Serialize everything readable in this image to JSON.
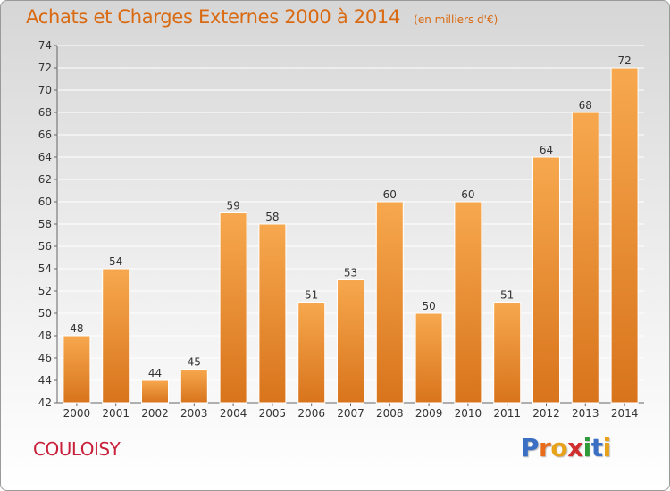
{
  "header": {
    "title": "Achats et Charges Externes 2000 à 2014",
    "subtitle": "(en milliers d'€)"
  },
  "footer": {
    "commune": "COULOISY",
    "logo": [
      "P",
      "r",
      "o",
      "x",
      "i",
      "t",
      "i"
    ]
  },
  "colors": {
    "title": "#d96a12",
    "commune": "#c8203a",
    "bar_light": "#f7a84e",
    "bar_dark": "#d8741c",
    "logo": [
      "#3b6fc4",
      "#e86c1a",
      "#e8a21a",
      "#d12f2f",
      "#2f9a3a",
      "#3b6fc4",
      "#e8a21a"
    ]
  },
  "chart_data": {
    "type": "bar",
    "title": "Achats et Charges Externes 2000 à 2014",
    "subtitle": "(en milliers d'€)",
    "xlabel": "",
    "ylabel": "",
    "categories": [
      "2000",
      "2001",
      "2002",
      "2003",
      "2004",
      "2005",
      "2006",
      "2007",
      "2008",
      "2009",
      "2010",
      "2011",
      "2012",
      "2013",
      "2014"
    ],
    "values": [
      48,
      54,
      44,
      45,
      59,
      58,
      51,
      53,
      60,
      50,
      60,
      51,
      64,
      68,
      72
    ],
    "ylim": [
      42,
      74
    ],
    "yticks": [
      "42",
      "44",
      "46",
      "48",
      "50",
      "52",
      "54",
      "56",
      "58",
      "60",
      "62",
      "64",
      "66",
      "68",
      "70",
      "72",
      "74"
    ],
    "grid": true,
    "legend": "none"
  }
}
